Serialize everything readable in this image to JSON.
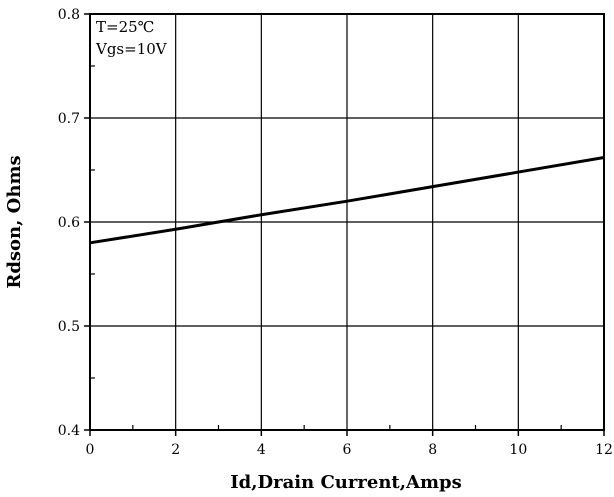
{
  "chart_data": {
    "type": "line",
    "title": "",
    "xlabel": "Id,Drain Current,Amps",
    "ylabel": "Rdson, Ohms",
    "xlim": [
      0,
      12
    ],
    "ylim": [
      0.4,
      0.8
    ],
    "x_ticks": [
      0,
      2,
      4,
      6,
      8,
      10,
      12
    ],
    "y_ticks": [
      0.4,
      0.5,
      0.6,
      0.7,
      0.8
    ],
    "x_tick_labels": [
      "0",
      "2",
      "4",
      "6",
      "8",
      "10",
      "12"
    ],
    "y_tick_labels": [
      "0.4",
      "0.5",
      "0.6",
      "0.7",
      "0.8"
    ],
    "grid": true,
    "annotations": [
      "T=25℃",
      "Vgs=10V"
    ],
    "series": [
      {
        "x": [
          0,
          2,
          4,
          6,
          8,
          10,
          12
        ],
        "y": [
          0.58,
          0.593,
          0.607,
          0.62,
          0.634,
          0.648,
          0.662
        ],
        "color": "#000000"
      }
    ]
  }
}
